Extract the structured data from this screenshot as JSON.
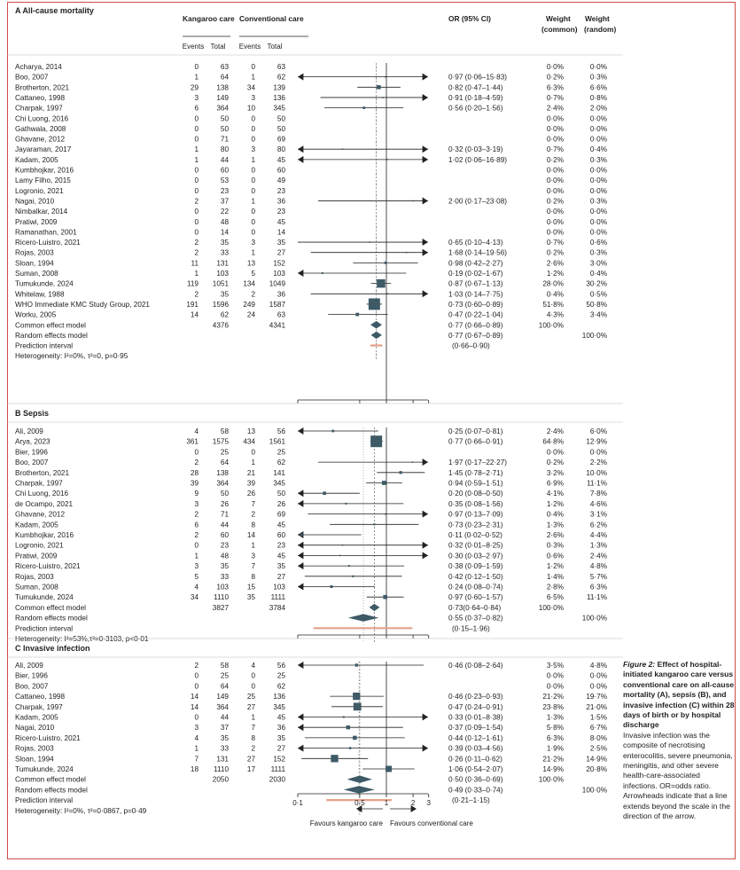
{
  "caption": {
    "title": "Figure 2:",
    "title_rest": " Effect of hospital-initiated kangaroo care versus conventional care on all-cause mortality (A), sepsis (B), and invasive infection (C) within 28 days of birth or by hospital discharge",
    "body": "Invasive infection was the composite of necrotising enterocolitis, severe pneumonia, meningitis, and other severe health-care-associated infections. OR=odds ratio. Arrowheads indicate that a line extends beyond the scale in the direction of the arrow."
  },
  "headers": {
    "kangaroo": "Kangaroo care",
    "conventional": "Conventional care",
    "events": "Events",
    "total": "Total",
    "or": "OR (95% CI)",
    "weight_common": "Weight\n(common)",
    "weight_random": "Weight\n(random)"
  },
  "axis": {
    "ticks": [
      "0·1",
      "0·5",
      "1",
      "2",
      "3"
    ],
    "tick_values": [
      0.1,
      0.5,
      1,
      2,
      3
    ],
    "left_label": "Favours kangaroo care",
    "right_label": "Favours  conventional care"
  },
  "chart_data": {
    "type": "forest",
    "scale": "log",
    "xlim": [
      0.1,
      3
    ],
    "panels": [
      {
        "title": "A  All-cause mortality",
        "rows": [
          {
            "study": "Acharya, 2014",
            "ke": "0",
            "kt": "63",
            "ce": "0",
            "ct": "63",
            "or": "",
            "wc": "0·0%",
            "wr": "0·0%"
          },
          {
            "study": "Boo, 2007",
            "ke": "1",
            "kt": "64",
            "ce": "1",
            "ct": "62",
            "or": "0·97 (0·06–15·83)",
            "wc": "0·2%",
            "wr": "0·3%",
            "est": 0.97,
            "lo": 0.06,
            "hi": 15.83
          },
          {
            "study": "Brotherton, 2021",
            "ke": "29",
            "kt": "138",
            "ce": "34",
            "ct": "139",
            "or": "0·82 (0·47–1·44)",
            "wc": "6·3%",
            "wr": "6·6%",
            "est": 0.82,
            "lo": 0.47,
            "hi": 1.44
          },
          {
            "study": "Cattaneo, 1998",
            "ke": "3",
            "kt": "149",
            "ce": "3",
            "ct": "136",
            "or": "0·91 (0·18–4·59)",
            "wc": "0·7%",
            "wr": "0·8%",
            "est": 0.91,
            "lo": 0.18,
            "hi": 4.59
          },
          {
            "study": "Charpak, 1997",
            "ke": "6",
            "kt": "364",
            "ce": "10",
            "ct": "345",
            "or": "0·56 (0·20–1·56)",
            "wc": "2·4%",
            "wr": "2·0%",
            "est": 0.56,
            "lo": 0.2,
            "hi": 1.56
          },
          {
            "study": "Chi Luong, 2016",
            "ke": "0",
            "kt": "50",
            "ce": "0",
            "ct": "50",
            "or": "",
            "wc": "0·0%",
            "wr": "0·0%"
          },
          {
            "study": "Gathwala, 2008",
            "ke": "0",
            "kt": "50",
            "ce": "0",
            "ct": "50",
            "or": "",
            "wc": "0·0%",
            "wr": "0·0%"
          },
          {
            "study": "Ghavane, 2012",
            "ke": "0",
            "kt": "71",
            "ce": "0",
            "ct": "69",
            "or": "",
            "wc": "0·0%",
            "wr": "0·0%"
          },
          {
            "study": "Jayaraman, 2017",
            "ke": "1",
            "kt": "80",
            "ce": "3",
            "ct": "80",
            "or": "0·32 (0·03–3·19)",
            "wc": "0·7%",
            "wr": "0·4%",
            "est": 0.32,
            "lo": 0.03,
            "hi": 3.19
          },
          {
            "study": "Kadam, 2005",
            "ke": "1",
            "kt": "44",
            "ce": "1",
            "ct": "45",
            "or": "1·02 (0·06–16·89)",
            "wc": "0·2%",
            "wr": "0·3%",
            "est": 1.02,
            "lo": 0.06,
            "hi": 16.89
          },
          {
            "study": "Kumbhojkar, 2016",
            "ke": "0",
            "kt": "60",
            "ce": "0",
            "ct": "60",
            "or": "",
            "wc": "0·0%",
            "wr": "0·0%"
          },
          {
            "study": "Lamy Filho, 2015",
            "ke": "0",
            "kt": "53",
            "ce": "0",
            "ct": "49",
            "or": "",
            "wc": "0·0%",
            "wr": "0·0%"
          },
          {
            "study": "Logronio, 2021",
            "ke": "0",
            "kt": "23",
            "ce": "0",
            "ct": "23",
            "or": "",
            "wc": "0·0%",
            "wr": "0·0%"
          },
          {
            "study": "Nagai, 2010",
            "ke": "2",
            "kt": "37",
            "ce": "1",
            "ct": "36",
            "or": "2·00 (0·17–23·08)",
            "wc": "0·2%",
            "wr": "0·3%",
            "est": 2.0,
            "lo": 0.17,
            "hi": 23.08
          },
          {
            "study": "Nimbalkar, 2014",
            "ke": "0",
            "kt": "22",
            "ce": "0",
            "ct": "23",
            "or": "",
            "wc": "0·0%",
            "wr": "0·0%"
          },
          {
            "study": "Pratiwi, 2009",
            "ke": "0",
            "kt": "48",
            "ce": "0",
            "ct": "45",
            "or": "",
            "wc": "0·0%",
            "wr": "0·0%"
          },
          {
            "study": "Ramanathan, 2001",
            "ke": "0",
            "kt": "14",
            "ce": "0",
            "ct": "14",
            "or": "",
            "wc": "0·0%",
            "wr": "0·0%"
          },
          {
            "study": "Ricero-Luistro, 2021",
            "ke": "2",
            "kt": "35",
            "ce": "3",
            "ct": "35",
            "or": "0·65 (0·10–4·13)",
            "wc": "0·7%",
            "wr": "0·6%",
            "est": 0.65,
            "lo": 0.1,
            "hi": 4.13
          },
          {
            "study": "Rojas, 2003",
            "ke": "2",
            "kt": "33",
            "ce": "1",
            "ct": "27",
            "or": "1·68 (0·14–19·56)",
            "wc": "0·2%",
            "wr": "0·3%",
            "est": 1.68,
            "lo": 0.14,
            "hi": 19.56
          },
          {
            "study": "Sloan, 1994",
            "ke": "11",
            "kt": "131",
            "ce": "13",
            "ct": "152",
            "or": "0·98 (0·42–2·27)",
            "wc": "2·6%",
            "wr": "3·0%",
            "est": 0.98,
            "lo": 0.42,
            "hi": 2.27
          },
          {
            "study": "Suman, 2008",
            "ke": "1",
            "kt": "103",
            "ce": "5",
            "ct": "103",
            "or": "0·19 (0·02–1·67)",
            "wc": "1·2%",
            "wr": "0·4%",
            "est": 0.19,
            "lo": 0.02,
            "hi": 1.67
          },
          {
            "study": "Tumukunde, 2024",
            "ke": "119",
            "kt": "1051",
            "ce": "134",
            "ct": "1049",
            "or": "0·87 (0·67–1·13)",
            "wc": "28·0%",
            "wr": "30·2%",
            "est": 0.87,
            "lo": 0.67,
            "hi": 1.13
          },
          {
            "study": "Whitelaw, 1988",
            "ke": "2",
            "kt": "35",
            "ce": "2",
            "ct": "36",
            "or": "1·03 (0·14–7·75)",
            "wc": "0·4%",
            "wr": "0·5%",
            "est": 1.03,
            "lo": 0.14,
            "hi": 7.75
          },
          {
            "study": "WHO Immediate KMC Study Group, 2021",
            "ke": "191",
            "kt": "1596",
            "ce": "249",
            "ct": "1587",
            "or": "0·73 (0·60–0·89)",
            "wc": "51·8%",
            "wr": "50·8%",
            "est": 0.73,
            "lo": 0.6,
            "hi": 0.89
          },
          {
            "study": "Worku, 2005",
            "ke": "14",
            "kt": "62",
            "ce": "24",
            "ct": "63",
            "or": "0·47 (0·22–1·04)",
            "wc": "4·3%",
            "wr": "3·4%",
            "est": 0.47,
            "lo": 0.22,
            "hi": 1.04
          }
        ],
        "common": {
          "label": "Common effect model",
          "kt": "4376",
          "ct": "4341",
          "or": "0·77 (0·66–0·89)",
          "wc": "100·0%",
          "wr": "",
          "est": 0.77,
          "lo": 0.66,
          "hi": 0.89
        },
        "random": {
          "label": "Random effects model",
          "or": "0·77 (0·67–0·89)",
          "wc": "",
          "wr": "100·0%",
          "est": 0.77,
          "lo": 0.67,
          "hi": 0.89
        },
        "prediction": {
          "label": "Prediction interval",
          "or": "(0·66–0·90)",
          "lo": 0.66,
          "hi": 0.9
        },
        "heterogeneity": "Heterogeneity: I²=0%, τ²=0, p=0·95"
      },
      {
        "title": "B  Sepsis",
        "rows": [
          {
            "study": "Ali, 2009",
            "ke": "4",
            "kt": "58",
            "ce": "13",
            "ct": "56",
            "or": "0·25 (0·07–0·81)",
            "wc": "2·4%",
            "wr": "6·0%",
            "est": 0.25,
            "lo": 0.07,
            "hi": 0.81
          },
          {
            "study": "Arya, 2023",
            "ke": "361",
            "kt": "1575",
            "ce": "434",
            "ct": "1561",
            "or": "0·77 (0·66–0·91)",
            "wc": "64·8%",
            "wr": "12·9%",
            "est": 0.77,
            "lo": 0.66,
            "hi": 0.91
          },
          {
            "study": "Bier, 1996",
            "ke": "0",
            "kt": "25",
            "ce": "0",
            "ct": "25",
            "or": "",
            "wc": "0·0%",
            "wr": "0·0%"
          },
          {
            "study": "Boo, 2007",
            "ke": "2",
            "kt": "64",
            "ce": "1",
            "ct": "62",
            "or": "1·97 (0·17–22·27)",
            "wc": "0·2%",
            "wr": "2·2%",
            "est": 1.97,
            "lo": 0.17,
            "hi": 22.27
          },
          {
            "study": "Brotherton, 2021",
            "ke": "28",
            "kt": "138",
            "ce": "21",
            "ct": "141",
            "or": "1·45 (0·78–2·71)",
            "wc": "3·2%",
            "wr": "10·0%",
            "est": 1.45,
            "lo": 0.78,
            "hi": 2.71
          },
          {
            "study": "Charpak, 1997",
            "ke": "39",
            "kt": "364",
            "ce": "39",
            "ct": "345",
            "or": "0·94 (0·59–1·51)",
            "wc": "6·9%",
            "wr": "11·1%",
            "est": 0.94,
            "lo": 0.59,
            "hi": 1.51
          },
          {
            "study": "Chi Luong, 2016",
            "ke": "9",
            "kt": "50",
            "ce": "26",
            "ct": "50",
            "or": "0·20 (0·08–0·50)",
            "wc": "4·1%",
            "wr": "7·8%",
            "est": 0.2,
            "lo": 0.08,
            "hi": 0.5
          },
          {
            "study": "de Ocampo, 2021",
            "ke": "3",
            "kt": "26",
            "ce": "7",
            "ct": "26",
            "or": "0·35 (0·08–1·56)",
            "wc": "1·2%",
            "wr": "4·6%",
            "est": 0.35,
            "lo": 0.08,
            "hi": 1.56
          },
          {
            "study": "Ghavane, 2012",
            "ke": "2",
            "kt": "71",
            "ce": "2",
            "ct": "69",
            "or": "0·97 (0·13–7·09)",
            "wc": "0·4%",
            "wr": "3·1%",
            "est": 0.97,
            "lo": 0.13,
            "hi": 7.09
          },
          {
            "study": "Kadam, 2005",
            "ke": "6",
            "kt": "44",
            "ce": "8",
            "ct": "45",
            "or": "0·73 (0·23–2·31)",
            "wc": "1·3%",
            "wr": "6·2%",
            "est": 0.73,
            "lo": 0.23,
            "hi": 2.31
          },
          {
            "study": "Kumbhojkar, 2016",
            "ke": "2",
            "kt": "60",
            "ce": "14",
            "ct": "60",
            "or": "0·11 (0·02–0·52)",
            "wc": "2·6%",
            "wr": "4·4%",
            "est": 0.11,
            "lo": 0.02,
            "hi": 0.52
          },
          {
            "study": "Logronio, 2021",
            "ke": "0",
            "kt": "23",
            "ce": "1",
            "ct": "23",
            "or": "0·32 (0·01–8·25)",
            "wc": "0·3%",
            "wr": "1·3%",
            "est": 0.32,
            "lo": 0.01,
            "hi": 8.25
          },
          {
            "study": "Pratiwi, 2009",
            "ke": "1",
            "kt": "48",
            "ce": "3",
            "ct": "45",
            "or": "0·30 (0·03–2·97)",
            "wc": "0·6%",
            "wr": "2·4%",
            "est": 0.3,
            "lo": 0.03,
            "hi": 2.97
          },
          {
            "study": "Ricero-Luistro, 2021",
            "ke": "3",
            "kt": "35",
            "ce": "7",
            "ct": "35",
            "or": "0·38 (0·09–1·59)",
            "wc": "1·2%",
            "wr": "4·8%",
            "est": 0.38,
            "lo": 0.09,
            "hi": 1.59
          },
          {
            "study": "Rojas, 2003",
            "ke": "5",
            "kt": "33",
            "ce": "8",
            "ct": "27",
            "or": "0·42 (0·12–1·50)",
            "wc": "1·4%",
            "wr": "5·7%",
            "est": 0.42,
            "lo": 0.12,
            "hi": 1.5
          },
          {
            "study": "Suman, 2008",
            "ke": "4",
            "kt": "103",
            "ce": "15",
            "ct": "103",
            "or": "0·24 (0·08–0·74)",
            "wc": "2·8%",
            "wr": "6·3%",
            "est": 0.24,
            "lo": 0.08,
            "hi": 0.74
          },
          {
            "study": "Tumukunde, 2024",
            "ke": "34",
            "kt": "1110",
            "ce": "35",
            "ct": "1111",
            "or": "0·97 (0·60–1·57)",
            "wc": "6·5%",
            "wr": "11·1%",
            "est": 0.97,
            "lo": 0.6,
            "hi": 1.57
          }
        ],
        "common": {
          "label": "Common effect model",
          "kt": "3827",
          "ct": "3784",
          "or": "0·73(0·64–0·84)",
          "wc": "100·0%",
          "wr": "",
          "est": 0.73,
          "lo": 0.64,
          "hi": 0.84
        },
        "random": {
          "label": "Random effects model",
          "or": "0·55 (0·37–0·82)",
          "wc": "",
          "wr": "100·0%",
          "est": 0.55,
          "lo": 0.37,
          "hi": 0.82
        },
        "prediction": {
          "label": "Prediction interval",
          "or": "(0·15–1·96)",
          "lo": 0.15,
          "hi": 1.96
        },
        "heterogeneity": "Heterogeneity: I²=53%,τ²=0·3103, p<0·01"
      },
      {
        "title": "C  Invasive infection",
        "rows": [
          {
            "study": "Ali, 2009",
            "ke": "2",
            "kt": "58",
            "ce": "4",
            "ct": "56",
            "or": "0·46 (0·08–2·64)",
            "wc": "3·5%",
            "wr": "4·8%",
            "est": 0.46,
            "lo": 0.08,
            "hi": 2.64
          },
          {
            "study": "Bier, 1996",
            "ke": "0",
            "kt": "25",
            "ce": "0",
            "ct": "25",
            "or": "",
            "wc": "0·0%",
            "wr": "0·0%"
          },
          {
            "study": "Boo, 2007",
            "ke": "0",
            "kt": "64",
            "ce": "0",
            "ct": "62",
            "or": "",
            "wc": "0·0%",
            "wr": "0·0%"
          },
          {
            "study": "Cattaneo, 1998",
            "ke": "14",
            "kt": "149",
            "ce": "25",
            "ct": "136",
            "or": "0·46 (0·23–0·93)",
            "wc": "21·2%",
            "wr": "19·7%",
            "est": 0.46,
            "lo": 0.23,
            "hi": 0.93
          },
          {
            "study": "Charpak, 1997",
            "ke": "14",
            "kt": "364",
            "ce": "27",
            "ct": "345",
            "or": "0·47 (0·24–0·91)",
            "wc": "23·8%",
            "wr": "21·0%",
            "est": 0.47,
            "lo": 0.24,
            "hi": 0.91
          },
          {
            "study": "Kadam, 2005",
            "ke": "0",
            "kt": "44",
            "ce": "1",
            "ct": "45",
            "or": "0·33 (0·01–8·38)",
            "wc": "1·3%",
            "wr": "1·5%",
            "est": 0.33,
            "lo": 0.01,
            "hi": 8.38
          },
          {
            "study": "Nagai, 2010",
            "ke": "3",
            "kt": "37",
            "ce": "7",
            "ct": "36",
            "or": "0·37 (0·09–1·54)",
            "wc": "5·8%",
            "wr": "6·7%",
            "est": 0.37,
            "lo": 0.09,
            "hi": 1.54
          },
          {
            "study": "Ricero-Luistro, 2021",
            "ke": "4",
            "kt": "35",
            "ce": "8",
            "ct": "35",
            "or": "0·44 (0·12–1·61)",
            "wc": "6·3%",
            "wr": "8·0%",
            "est": 0.44,
            "lo": 0.12,
            "hi": 1.61
          },
          {
            "study": "Rojas, 2003",
            "ke": "1",
            "kt": "33",
            "ce": "2",
            "ct": "27",
            "or": "0·39 (0·03–4·56)",
            "wc": "1·9%",
            "wr": "2·5%",
            "est": 0.39,
            "lo": 0.03,
            "hi": 4.56
          },
          {
            "study": "Sloan, 1994",
            "ke": "7",
            "kt": "131",
            "ce": "27",
            "ct": "152",
            "or": "0·26 (0·11–0·62)",
            "wc": "21·2%",
            "wr": "14·9%",
            "est": 0.26,
            "lo": 0.11,
            "hi": 0.62
          },
          {
            "study": "Tumukunde, 2024",
            "ke": "18",
            "kt": "1110",
            "ce": "17",
            "ct": "1111",
            "or": "1·06 (0·54–2·07)",
            "wc": "14·9%",
            "wr": "20·8%",
            "est": 1.06,
            "lo": 0.54,
            "hi": 2.07
          }
        ],
        "common": {
          "label": "Common effect model",
          "kt": "2050",
          "ct": "2030",
          "or": "0·50 (0·36–0·69)",
          "wc": "100·0%",
          "wr": "",
          "est": 0.5,
          "lo": 0.36,
          "hi": 0.69
        },
        "random": {
          "label": "Random effects model",
          "or": "0·49 (0·33–0·74)",
          "wc": "",
          "wr": "100·0%",
          "est": 0.49,
          "lo": 0.33,
          "hi": 0.74
        },
        "prediction": {
          "label": "Prediction interval",
          "or": "(0·21–1·15)",
          "lo": 0.21,
          "hi": 1.15
        },
        "heterogeneity": "Heterogeneity: I²=0%, τ²=0·0867, p=0·49"
      }
    ]
  },
  "colors": {
    "frame": "#d14a4a",
    "square": "#3d5a66",
    "diamond": "#3d5a66",
    "prediction": "#e8a08a",
    "dashed": "#666666"
  }
}
